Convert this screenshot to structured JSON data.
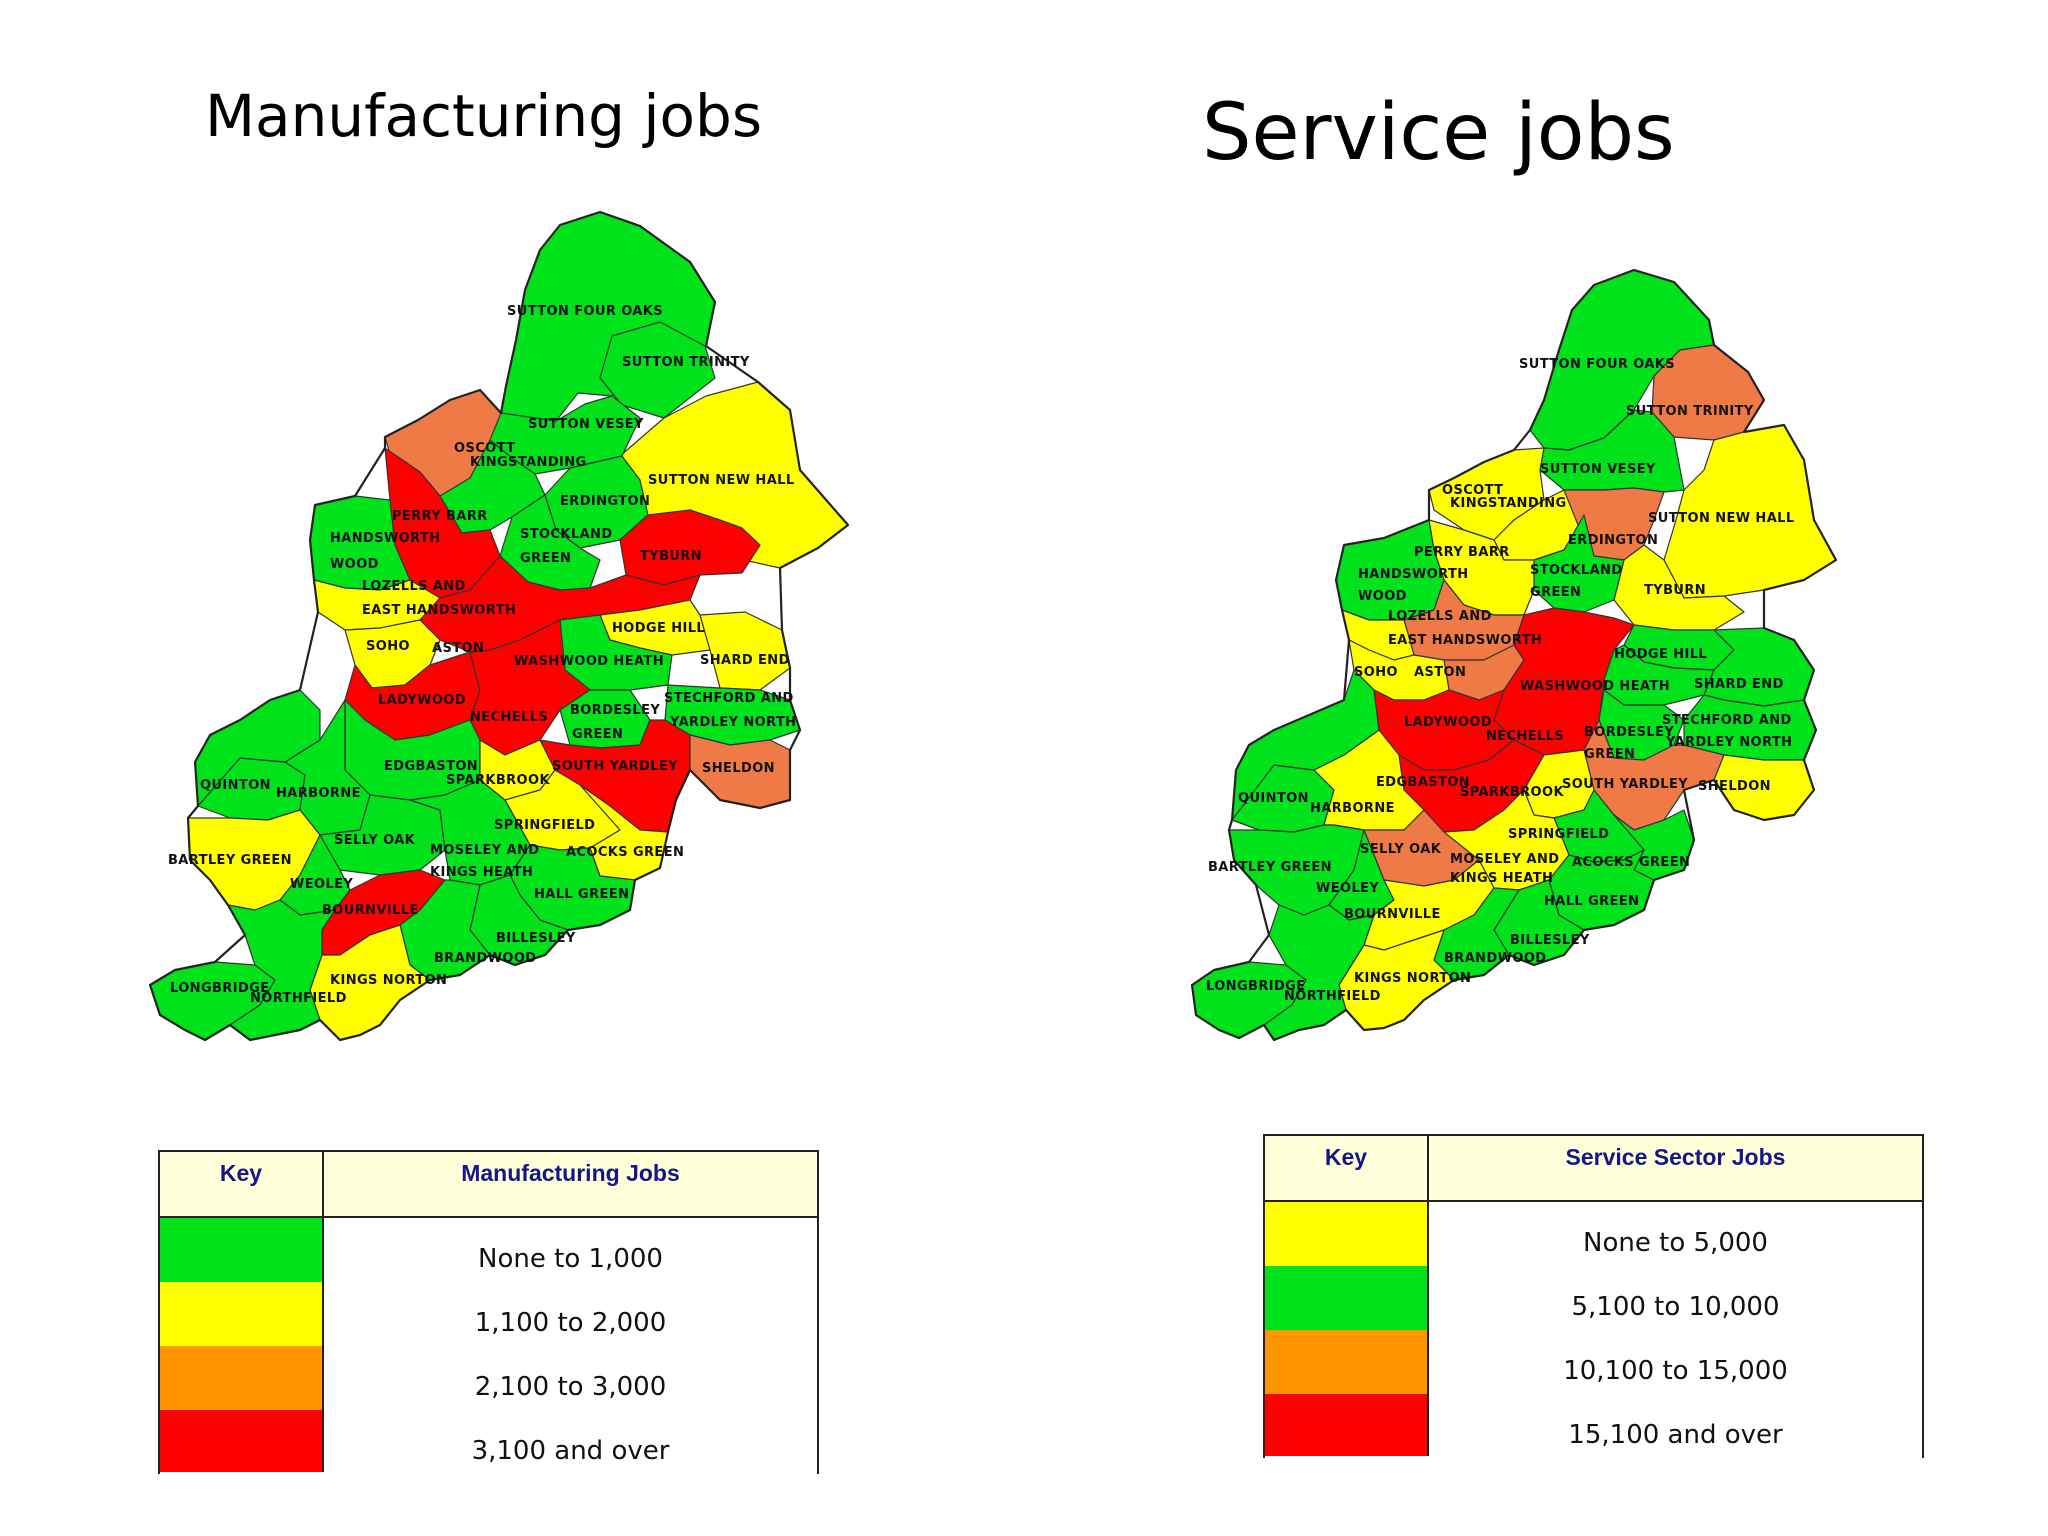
{
  "colors": {
    "green": "#00e21a",
    "yellow": "#ffff00",
    "orange": "#f07a45",
    "red": "#ff0000",
    "key_orange": "#ff9600",
    "key_header_bg": "#ffffd9",
    "key_header_text": "#15158c"
  },
  "left": {
    "title": "Manufacturing jobs",
    "wards": {
      "sutton_four_oaks": "SUTTON FOUR OAKS",
      "sutton_trinity": "SUTTON TRINITY",
      "sutton_vesey": "SUTTON VESEY",
      "oscott": "OSCOTT",
      "kingstanding": "KINGSTANDING",
      "sutton_new_hall": "SUTTON NEW HALL",
      "perry_barr": "PERRY BARR",
      "erdington": "ERDINGTON",
      "handsworth": "HANDSWORTH",
      "wood": "WOOD",
      "stockland": "STOCKLAND",
      "green": "GREEN",
      "tyburn": "TYBURN",
      "lozells_and": "LOZELLS AND",
      "east_handsworth": "EAST HANDSWORTH",
      "soho": "SOHO",
      "aston": "ASTON",
      "hodge_hill": "HODGE HILL",
      "washwood_heath": "WASHWOOD HEATH",
      "shard_end": "SHARD END",
      "ladywood": "LADYWOOD",
      "nechells": "NECHELLS",
      "bordesley": "BORDESLEY",
      "bordesley_green": "GREEN",
      "stechford_and": "STECHFORD AND",
      "yardley_north": "YARDLEY NORTH",
      "edgbaston": "EDGBASTON",
      "south_yardley": "SOUTH YARDLEY",
      "sheldon": "SHELDON",
      "quinton": "QUINTON",
      "harborne": "HARBORNE",
      "sparkbrook": "SPARKBROOK",
      "springfield": "SPRINGFIELD",
      "selly_oak": "SELLY OAK",
      "bartley_green": "BARTLEY GREEN",
      "moseley_and": "MOSELEY AND",
      "kings_heath": "KINGS HEATH",
      "acocks_green": "ACOCKS GREEN",
      "weoley": "WEOLEY",
      "hall_green": "HALL GREEN",
      "bournville": "BOURNVILLE",
      "billesley": "BILLESLEY",
      "brandwood": "BRANDWOOD",
      "kings_norton": "KINGS NORTON",
      "longbridge": "LONGBRIDGE",
      "northfield": "NORTHFIELD"
    },
    "key": {
      "key_label": "Key",
      "title": "Manufacturing Jobs",
      "rows": [
        {
          "label": "None to 1,000",
          "color": "#00e21a"
        },
        {
          "label": "1,100 to 2,000",
          "color": "#ffff00"
        },
        {
          "label": "2,100 to 3,000",
          "color": "#ff9600"
        },
        {
          "label": "3,100 and over",
          "color": "#ff0000"
        }
      ]
    }
  },
  "right": {
    "title": "Service jobs",
    "wards": {
      "sutton_four_oaks": "SUTTON FOUR OAKS",
      "sutton_trinity": "SUTTON TRINITY",
      "sutton_vesey": "SUTTON VESEY",
      "oscott": "OSCOTT",
      "kingstanding": "KINGSTANDING",
      "sutton_new_hall": "SUTTON NEW HALL",
      "perry_barr": "PERRY BARR",
      "erdington": "ERDINGTON",
      "handsworth": "HANDSWORTH",
      "wood": "WOOD",
      "stockland": "STOCKLAND",
      "green": "GREEN",
      "tyburn": "TYBURN",
      "lozells_and": "LOZELLS AND",
      "east_handsworth": "EAST HANDSWORTH",
      "soho": "SOHO",
      "aston": "ASTON",
      "hodge_hill": "HODGE HILL",
      "washwood_heath": "WASHWOOD HEATH",
      "shard_end": "SHARD END",
      "ladywood": "LADYWOOD",
      "nechells": "NECHELLS",
      "bordesley": "BORDESLEY",
      "bordesley_green": "GREEN",
      "stechford_and": "STECHFORD AND",
      "yardley_north": "YARDLEY NORTH",
      "edgbaston": "EDGBASTON",
      "south_yardley": "SOUTH YARDLEY",
      "sheldon": "SHELDON",
      "quinton": "QUINTON",
      "harborne": "HARBORNE",
      "sparkbrook": "SPARKBROOK",
      "springfield": "SPRINGFIELD",
      "selly_oak": "SELLY OAK",
      "bartley_green": "BARTLEY GREEN",
      "moseley_and": "MOSELEY AND",
      "kings_heath": "KINGS HEATH",
      "acocks_green": "ACOCKS GREEN",
      "weoley": "WEOLEY",
      "hall_green": "HALL GREEN",
      "bournville": "BOURNVILLE",
      "billesley": "BILLESLEY",
      "brandwood": "BRANDWOOD",
      "kings_norton": "KINGS NORTON",
      "longbridge": "LONGBRIDGE",
      "northfield": "NORTHFIELD"
    },
    "key": {
      "key_label": "Key",
      "title": "Service Sector Jobs",
      "rows": [
        {
          "label": "None to 5,000",
          "color": "#ffff00"
        },
        {
          "label": "5,100 to 10,000",
          "color": "#00e21a"
        },
        {
          "label": "10,100 to 15,000",
          "color": "#ff9600"
        },
        {
          "label": "15,100 and over",
          "color": "#ff0000"
        }
      ]
    }
  }
}
